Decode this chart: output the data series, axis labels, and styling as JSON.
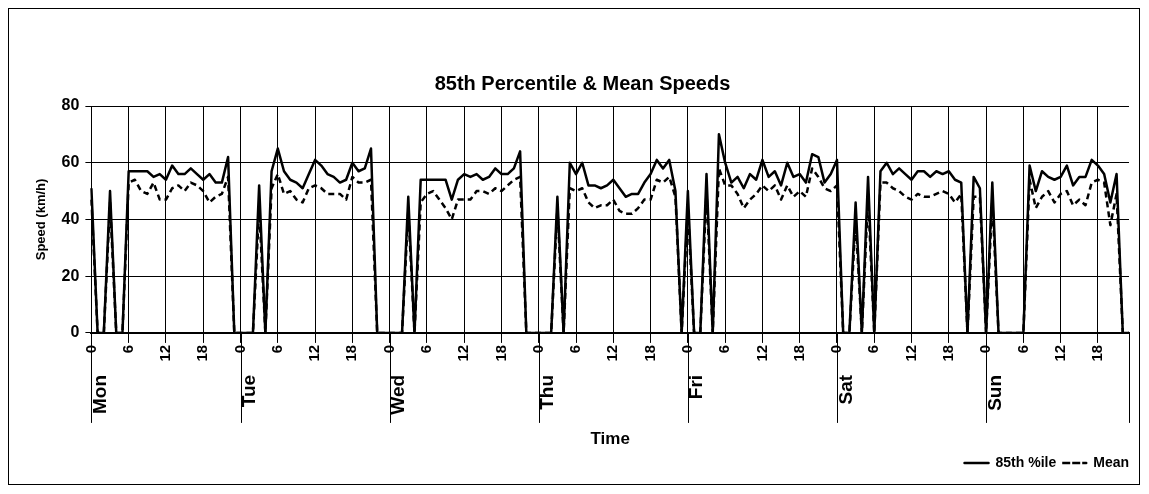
{
  "chart_data": {
    "type": "line",
    "title": "85th Percentile & Mean Speeds",
    "xlabel": "Time",
    "ylabel": "Speed (km/h)",
    "categories": [
      "0",
      null,
      null,
      null,
      null,
      null,
      "6",
      null,
      null,
      null,
      null,
      null,
      "12",
      null,
      null,
      null,
      null,
      null,
      "18",
      null,
      null,
      null,
      null,
      null,
      "0",
      null,
      null,
      null,
      null,
      null,
      "6",
      null,
      null,
      null,
      null,
      null,
      "12",
      null,
      null,
      null,
      null,
      null,
      "18",
      null,
      null,
      null,
      null,
      null,
      "0",
      null,
      null,
      null,
      null,
      null,
      "6",
      null,
      null,
      null,
      null,
      null,
      "12",
      null,
      null,
      null,
      null,
      null,
      "18",
      null,
      null,
      null,
      null,
      null,
      "0",
      null,
      null,
      null,
      null,
      null,
      "6",
      null,
      null,
      null,
      null,
      null,
      "12",
      null,
      null,
      null,
      null,
      null,
      "18",
      null,
      null,
      null,
      null,
      null,
      "0",
      null,
      null,
      null,
      null,
      null,
      "6",
      null,
      null,
      null,
      null,
      null,
      "12",
      null,
      null,
      null,
      null,
      null,
      "18",
      null,
      null,
      null,
      null,
      null,
      "0",
      null,
      null,
      null,
      null,
      null,
      "6",
      null,
      null,
      null,
      null,
      null,
      "12",
      null,
      null,
      null,
      null,
      null,
      "18",
      null,
      null,
      null,
      null,
      null,
      "0",
      null,
      null,
      null,
      null,
      null,
      "6",
      null,
      null,
      null,
      null,
      null,
      "12",
      null,
      null,
      null,
      null,
      null,
      "18",
      null,
      null,
      null,
      null,
      null
    ],
    "annotations": [
      "Mon",
      "Tue",
      "Wed",
      "Thu",
      "Fri",
      "Sat",
      "Sun"
    ],
    "ylim": [
      0,
      80
    ],
    "yticks": [
      0,
      20,
      40,
      60,
      80
    ],
    "grid": true,
    "legend": "bottom right",
    "marker": "none",
    "series": [
      {
        "name": "85th %ile",
        "color": "#000000",
        "line_style": "solid",
        "values": [
          51,
          0,
          0,
          50,
          0,
          0,
          57,
          57,
          57,
          57,
          55,
          56,
          54,
          59,
          56,
          56,
          58,
          56,
          54,
          56,
          53,
          53,
          62,
          0,
          0,
          0,
          0,
          52,
          0,
          57,
          65,
          57,
          54,
          53,
          51,
          56,
          61,
          59,
          56,
          55,
          53,
          54,
          60,
          57,
          58,
          65,
          0,
          0,
          0,
          0,
          0,
          48,
          0,
          54,
          54,
          54,
          54,
          54,
          47,
          54,
          56,
          55,
          56,
          54,
          55,
          58,
          56,
          56,
          58,
          64,
          0,
          0,
          0,
          0,
          0,
          48,
          0,
          60,
          56,
          60,
          52,
          52,
          51,
          52,
          54,
          51,
          48,
          49,
          49,
          53,
          56,
          61,
          58,
          61,
          50,
          0,
          50,
          0,
          0,
          56,
          0,
          70,
          60,
          53,
          55,
          51,
          56,
          54,
          61,
          55,
          57,
          52,
          60,
          55,
          56,
          53,
          63,
          62,
          53,
          56,
          61,
          0,
          0,
          46,
          0,
          55,
          0,
          57,
          60,
          56,
          58,
          56,
          54,
          57,
          57,
          55,
          57,
          56,
          57,
          54,
          53,
          0,
          55,
          51,
          0,
          53,
          0,
          0,
          0,
          0,
          0,
          59,
          50,
          57,
          55,
          54,
          55,
          59,
          52,
          55,
          55,
          61,
          59,
          56,
          46,
          56,
          0,
          0
        ]
      },
      {
        "name": "Mean",
        "color": "#000000",
        "line_style": "dashed",
        "values": [
          47,
          0,
          0,
          46,
          0,
          0,
          53,
          54,
          50,
          49,
          53,
          47,
          47,
          51,
          52,
          50,
          53,
          52,
          50,
          46,
          48,
          49,
          55,
          0,
          0,
          0,
          0,
          44,
          0,
          51,
          56,
          49,
          50,
          47,
          46,
          51,
          52,
          51,
          49,
          49,
          49,
          47,
          55,
          53,
          53,
          54,
          0,
          0,
          0,
          0,
          0,
          43,
          0,
          46,
          49,
          50,
          47,
          44,
          40,
          47,
          47,
          47,
          50,
          50,
          49,
          51,
          50,
          52,
          54,
          55,
          0,
          0,
          0,
          0,
          0,
          44,
          0,
          51,
          50,
          51,
          46,
          44,
          45,
          45,
          47,
          43,
          42,
          42,
          44,
          47,
          47,
          54,
          53,
          55,
          48,
          0,
          44,
          0,
          0,
          50,
          0,
          58,
          52,
          52,
          49,
          44,
          47,
          49,
          52,
          50,
          52,
          47,
          52,
          48,
          50,
          48,
          58,
          55,
          51,
          50,
          52,
          0,
          0,
          40,
          0,
          48,
          0,
          53,
          53,
          51,
          50,
          48,
          47,
          49,
          48,
          48,
          49,
          50,
          49,
          46,
          49,
          0,
          48,
          48,
          0,
          47,
          0,
          0,
          0,
          0,
          0,
          54,
          44,
          48,
          50,
          46,
          49,
          50,
          45,
          47,
          45,
          53,
          54,
          53,
          38,
          49,
          0,
          0
        ]
      }
    ]
  }
}
